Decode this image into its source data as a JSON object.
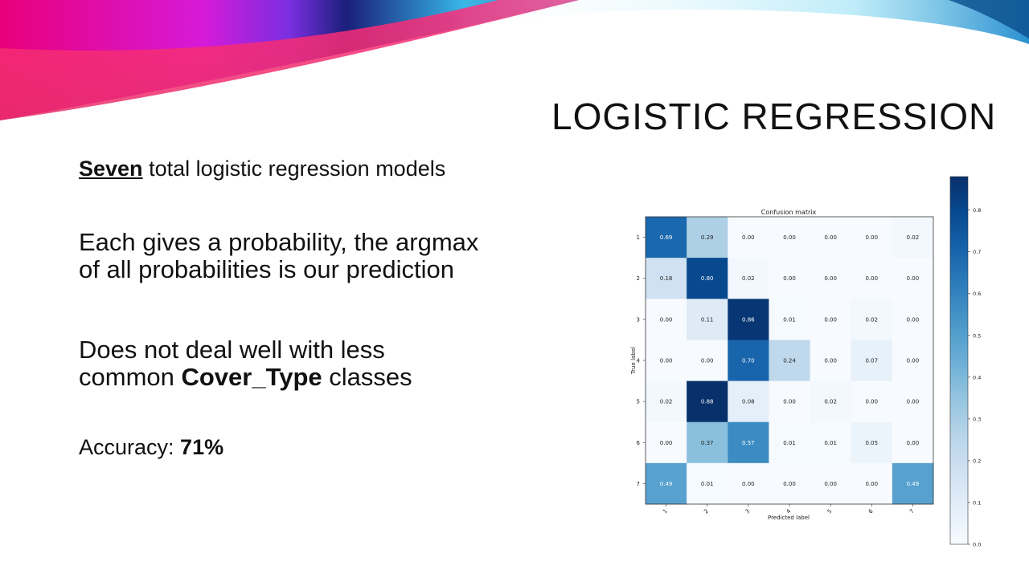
{
  "slide": {
    "title": "LOGISTIC REGRESSION",
    "bullet1": {
      "bold": "Seven",
      "rest": " total logistic regression models"
    },
    "bullet2": {
      "line1": "Each gives a probability, the argmax",
      "line2": "of all probabilities is our prediction"
    },
    "bullet3": {
      "line1": "Does not deal well with less",
      "pre": "common ",
      "bold": "Cover_Type",
      "post": " classes"
    },
    "bullet4": {
      "label": "Accuracy: ",
      "value": "71%"
    }
  },
  "chart_data": {
    "type": "heatmap",
    "title": "Confusion matrix",
    "xlabel": "Predicted label",
    "ylabel": "True label",
    "x_categories": [
      "1",
      "2",
      "3",
      "4",
      "5",
      "6",
      "7"
    ],
    "y_categories": [
      "1",
      "2",
      "3",
      "4",
      "5",
      "6",
      "7"
    ],
    "matrix": [
      [
        0.69,
        0.29,
        0.0,
        0.0,
        0.0,
        0.0,
        0.02
      ],
      [
        0.18,
        0.8,
        0.02,
        0.0,
        0.0,
        0.0,
        0.0
      ],
      [
        0.0,
        0.11,
        0.86,
        0.01,
        0.0,
        0.02,
        0.0
      ],
      [
        0.0,
        0.0,
        0.7,
        0.24,
        0.0,
        0.07,
        0.0
      ],
      [
        0.02,
        0.88,
        0.08,
        0.0,
        0.02,
        0.0,
        0.0
      ],
      [
        0.0,
        0.37,
        0.57,
        0.01,
        0.01,
        0.05,
        0.0
      ],
      [
        0.49,
        0.01,
        0.0,
        0.0,
        0.0,
        0.0,
        0.49
      ]
    ],
    "colorbar": {
      "min": 0.0,
      "max": 0.88,
      "ticks": [
        "0.0",
        "0.1",
        "0.2",
        "0.3",
        "0.4",
        "0.5",
        "0.6",
        "0.7",
        "0.8"
      ]
    },
    "colormap": "Blues"
  }
}
